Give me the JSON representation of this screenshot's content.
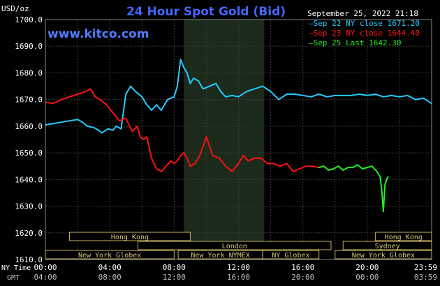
{
  "header": {
    "unit": "USD/oz",
    "title": "24 Hour Spot Gold (Bid)",
    "timestamp": "September 25, 2022 21:18",
    "watermark": "www.kitco.com"
  },
  "legend": [
    {
      "label": "Sep 22 NY close 1671.20",
      "color": "#22ccff"
    },
    {
      "label": "Sep 23 NY close 1644.40",
      "color": "#ff1111"
    },
    {
      "label": "Sep 25 Last 1642.30",
      "color": "#22ee22"
    }
  ],
  "axis_labels": {
    "ny_time": "NY Time",
    "gmt": "GMT"
  },
  "sessions": [
    {
      "name": "Hong Kong",
      "row": 0,
      "start": 1.5,
      "end": 9.0
    },
    {
      "name": "Hong Kong",
      "row": 0,
      "start": 20.5,
      "end": 24.0
    },
    {
      "name": "London",
      "row": 1,
      "start": 5.75,
      "end": 17.75
    },
    {
      "name": "Sydney",
      "row": 1,
      "start": 18.5,
      "end": 24.0
    },
    {
      "name": "New York Globex",
      "row": 2,
      "start": 0.0,
      "end": 8.0
    },
    {
      "name": "New York NYMEX",
      "row": 2,
      "start": 8.25,
      "end": 13.5
    },
    {
      "name": "NY Globex",
      "row": 2,
      "start": 13.5,
      "end": 17.0
    },
    {
      "name": "New York Globex",
      "row": 2,
      "start": 18.0,
      "end": 24.0
    }
  ],
  "chart_data": {
    "type": "line",
    "title": "24 Hour Spot Gold (Bid)",
    "ylabel": "USD/oz",
    "ylim": [
      1610,
      1700
    ],
    "xlim": [
      0,
      24
    ],
    "y_ticks": [
      "1610.0",
      "1620.0",
      "1630.0",
      "1640.0",
      "1650.0",
      "1660.0",
      "1670.0",
      "1680.0",
      "1690.0",
      "1700.0"
    ],
    "x_ticks_ny": [
      "00:00",
      "04:00",
      "08:00",
      "12:00",
      "16:00",
      "20:00",
      "23:59"
    ],
    "x_ticks_gmt": [
      "04:00",
      "08:00",
      "12:00",
      "16:00",
      "20:00",
      "00:00",
      "03:59"
    ],
    "x_tick_hours": [
      0,
      4,
      8,
      12,
      16,
      20,
      24
    ],
    "shaded_band": [
      8.6,
      13.6
    ],
    "grid": true,
    "legend_position": "top-right",
    "series": [
      {
        "name": "Sep 22 NY close 1671.20",
        "color": "#22ccff",
        "x": [
          0,
          0.5,
          1,
          1.5,
          2,
          2.3,
          2.6,
          3,
          3.3,
          3.5,
          3.9,
          4.2,
          4.4,
          4.7,
          5.0,
          5.3,
          5.6,
          6.0,
          6.3,
          6.6,
          6.9,
          7.2,
          7.6,
          8.0,
          8.2,
          8.4,
          8.6,
          8.8,
          9.0,
          9.2,
          9.5,
          9.8,
          10.2,
          10.6,
          10.9,
          11.2,
          11.6,
          12.0,
          12.5,
          13.0,
          13.5,
          14.0,
          14.5,
          15.0,
          15.5,
          16.0,
          16.5,
          17.0,
          17.5,
          18.0,
          18.5,
          19.0,
          19.5,
          20.0,
          20.5,
          21.0,
          21.5,
          22.0,
          22.5,
          23.0,
          23.5,
          24.0
        ],
        "values": [
          1660.5,
          1661,
          1661.5,
          1662,
          1662.5,
          1661.5,
          1660,
          1659.5,
          1658.5,
          1657.5,
          1659,
          1658.5,
          1660,
          1659,
          1672,
          1675,
          1673,
          1671,
          1668,
          1666,
          1668,
          1666,
          1670,
          1671,
          1675,
          1685,
          1682,
          1680,
          1676,
          1678,
          1677,
          1674,
          1675,
          1676,
          1673,
          1671,
          1671.5,
          1671,
          1673,
          1674,
          1675,
          1673,
          1670,
          1672,
          1672,
          1671.5,
          1671,
          1672,
          1671,
          1671.5,
          1671.5,
          1671.5,
          1672,
          1671.5,
          1672,
          1671,
          1671.5,
          1671,
          1671.5,
          1670,
          1670.5,
          1668.5
        ]
      },
      {
        "name": "Sep 23 NY close 1644.40",
        "color": "#ff1111",
        "x": [
          0,
          0.5,
          1,
          1.5,
          2,
          2.5,
          2.8,
          3.1,
          3.4,
          3.8,
          4.2,
          4.6,
          5.0,
          5.4,
          5.7,
          5.9,
          6.1,
          6.3,
          6.6,
          6.9,
          7.2,
          7.5,
          7.8,
          8.0,
          8.2,
          8.4,
          8.6,
          8.8,
          9.0,
          9.3,
          9.6,
          10.0,
          10.4,
          10.8,
          11.2,
          11.6,
          12.0,
          12.3,
          12.6,
          13.0,
          13.4,
          13.8,
          14.2,
          14.6,
          15.0,
          15.4,
          15.8,
          16.2,
          16.6,
          17.0
        ],
        "values": [
          1669,
          1668.5,
          1670,
          1671,
          1672,
          1673,
          1674,
          1671,
          1670,
          1668,
          1665,
          1662,
          1663,
          1658,
          1660,
          1656,
          1655,
          1656,
          1648,
          1644,
          1643,
          1645,
          1647,
          1646,
          1647,
          1649,
          1650,
          1648,
          1645,
          1646,
          1649,
          1656,
          1649,
          1648,
          1645,
          1643,
          1646,
          1649,
          1647,
          1648,
          1648,
          1646,
          1646,
          1645,
          1646,
          1643,
          1644,
          1645,
          1645,
          1644.5
        ]
      },
      {
        "name": "Sep 25 Last 1642.30",
        "color": "#22ee22",
        "x": [
          17.0,
          17.3,
          17.6,
          17.9,
          18.2,
          18.5,
          18.8,
          19.1,
          19.4,
          19.7,
          20.0,
          20.3,
          20.6,
          20.8,
          20.9,
          21.0,
          21.1,
          21.2,
          21.3
        ],
        "values": [
          1644.5,
          1645,
          1643.5,
          1644,
          1645,
          1643.5,
          1644.5,
          1644.5,
          1645.5,
          1644,
          1644.5,
          1645,
          1643,
          1641,
          1636,
          1628,
          1638,
          1640,
          1641
        ]
      }
    ]
  }
}
